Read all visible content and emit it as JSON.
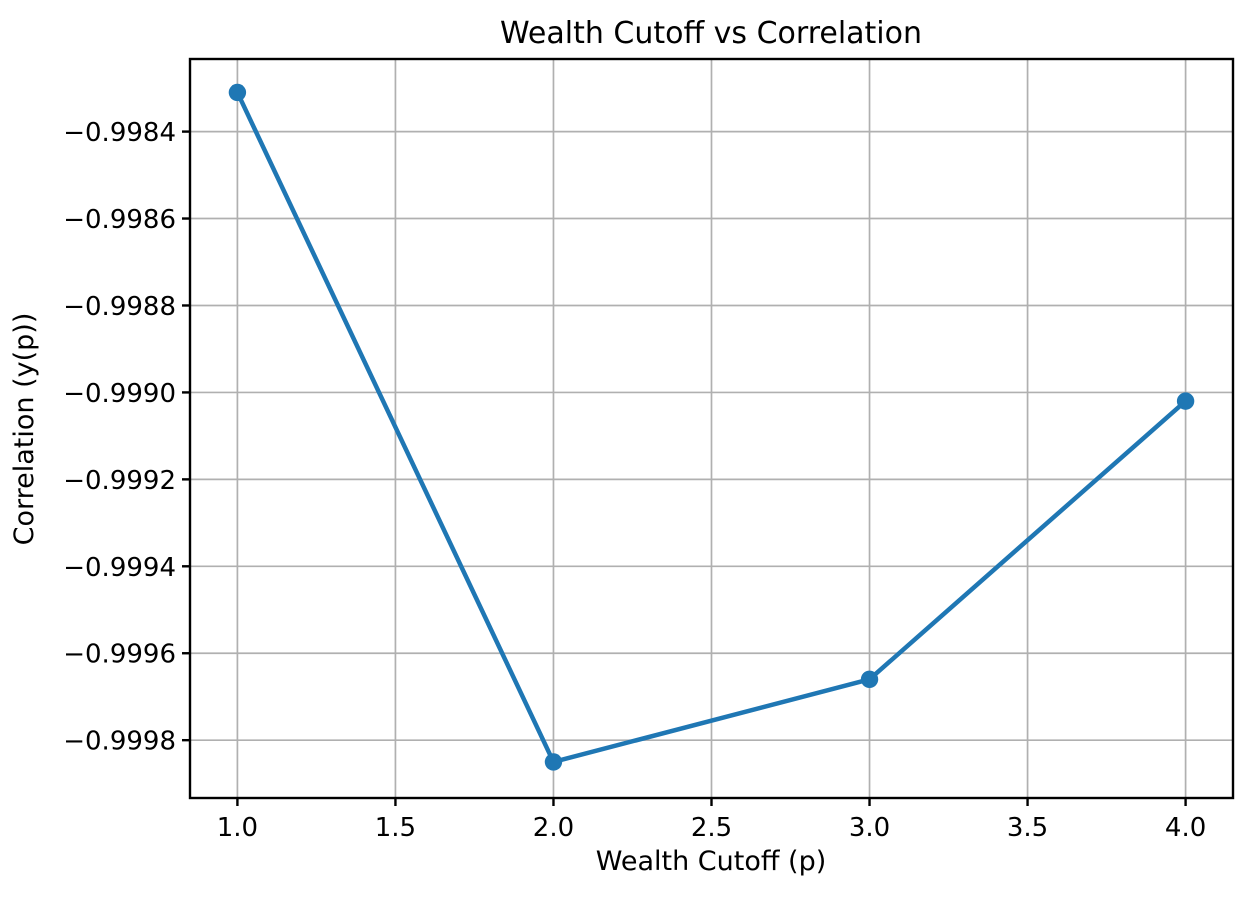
{
  "chart_data": {
    "type": "line",
    "title": "Wealth Cutoff vs Correlation",
    "xlabel": "Wealth Cutoff (p)",
    "ylabel": "Correlation (y(p))",
    "x": [
      1.0,
      2.0,
      3.0,
      4.0
    ],
    "y": [
      -0.99831,
      -0.99985,
      -0.99966,
      -0.99902
    ],
    "xlim": [
      0.85,
      4.15
    ],
    "ylim": [
      -0.999933,
      -0.998233
    ],
    "xticks": {
      "values": [
        1.0,
        1.5,
        2.0,
        2.5,
        3.0,
        3.5,
        4.0
      ],
      "labels": [
        "1.0",
        "1.5",
        "2.0",
        "2.5",
        "3.0",
        "3.5",
        "4.0"
      ]
    },
    "yticks": {
      "values": [
        -0.9984,
        -0.9986,
        -0.9988,
        -0.999,
        -0.9992,
        -0.9994,
        -0.9996,
        -0.9998
      ],
      "labels": [
        "−0.9984",
        "−0.9986",
        "−0.9988",
        "−0.9990",
        "−0.9992",
        "−0.9994",
        "−0.9996",
        "−0.9998"
      ]
    },
    "grid": true,
    "legend": false,
    "marker": "circle",
    "colors": {
      "line": "#1f77b4",
      "marker": "#1f77b4",
      "grid": "#b0b0b0",
      "spine": "#000000",
      "text": "#000000",
      "background": "#ffffff"
    }
  }
}
